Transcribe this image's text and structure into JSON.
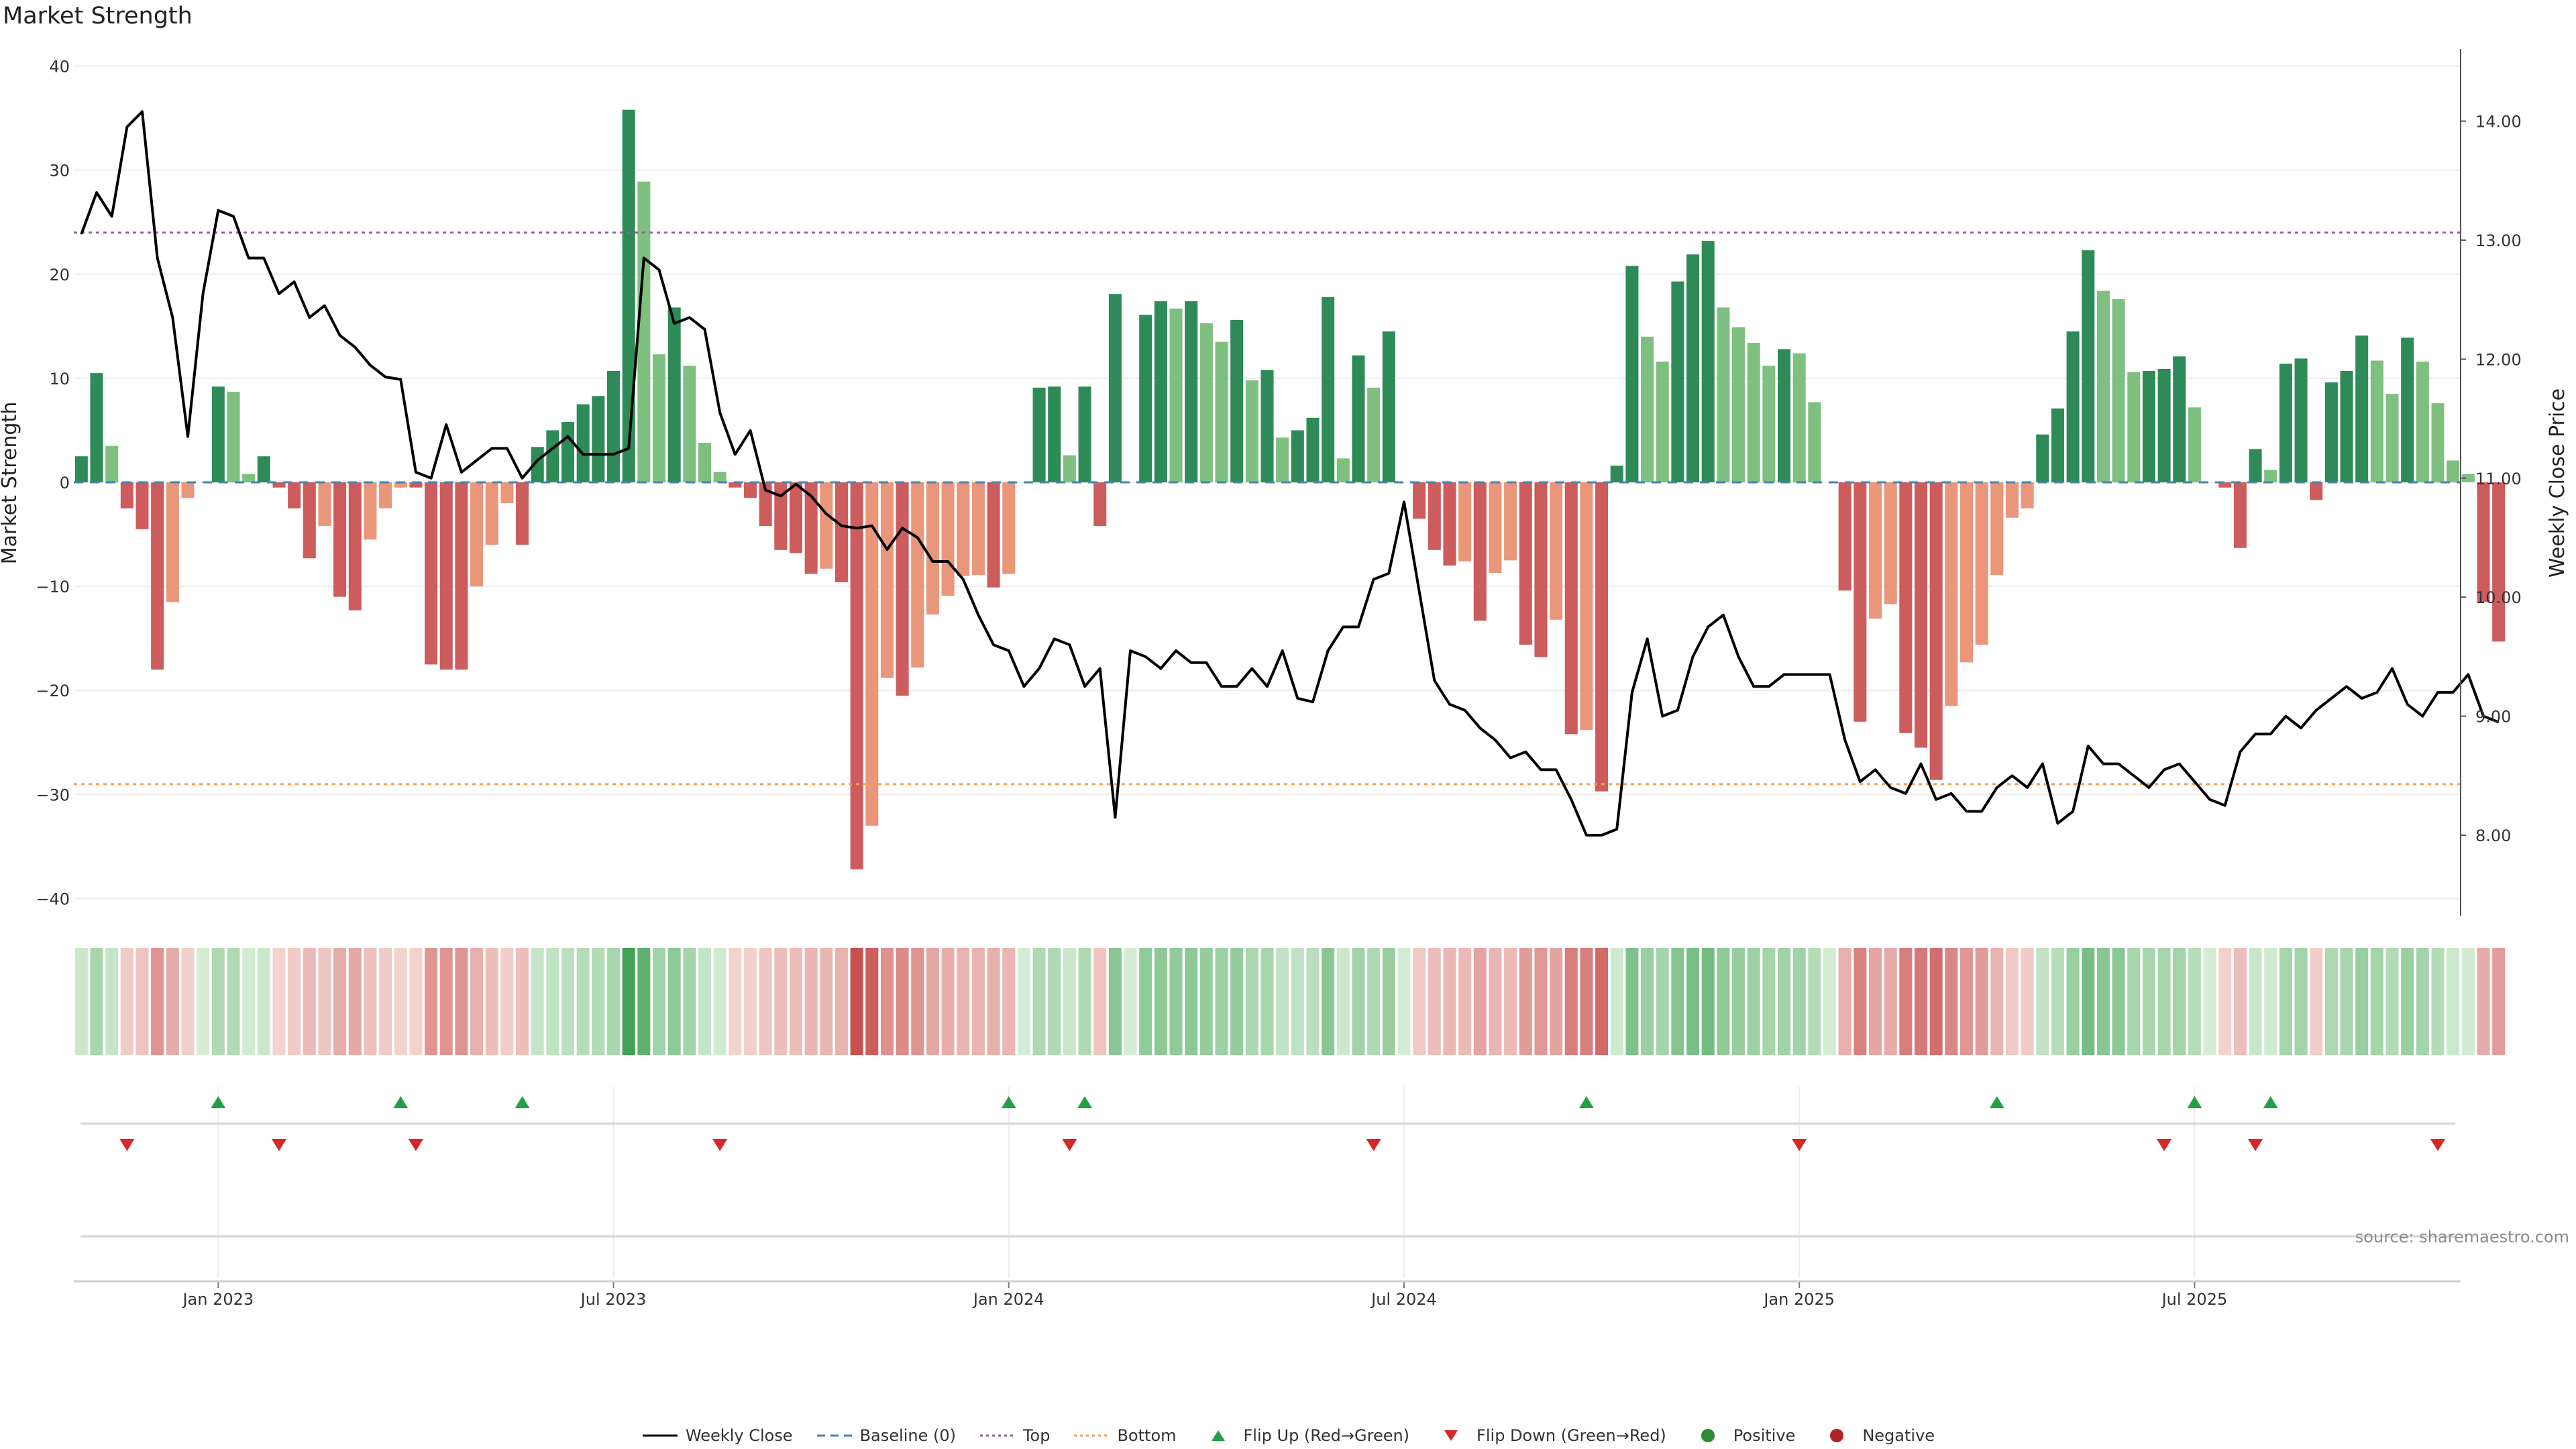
{
  "title": "Market Strength",
  "source": "source: sharemaestro.com",
  "colors": {
    "strong_green": "#2e8b57",
    "light_green": "#7fbf7f",
    "strong_red": "#cd5c5c",
    "light_red": "#e9967a",
    "price_line": "#000000",
    "baseline": "#4682b4",
    "top": "#9e5a9e",
    "bottom": "#f0a050",
    "flip_up": "#22a046",
    "flip_down": "#d62828",
    "positive": "#2e8b2e",
    "negative": "#b22222"
  },
  "legend": [
    {
      "label": "Weekly Close",
      "icon": "solid-line"
    },
    {
      "label": "Baseline (0)",
      "icon": "dashed-line"
    },
    {
      "label": "Top",
      "icon": "dotted-line"
    },
    {
      "label": "Bottom",
      "icon": "dotted-line"
    },
    {
      "label": "Flip Up (Red→Green)",
      "icon": "triangle-up"
    },
    {
      "label": "Flip Down (Green→Red)",
      "icon": "triangle-down"
    },
    {
      "label": "Positive",
      "icon": "dot"
    },
    {
      "label": "Negative",
      "icon": "dot"
    }
  ],
  "chart_data": {
    "type": "bar+line",
    "title": "Market Strength",
    "ylabel_left": "Market Strength",
    "ylabel_right": "Weekly Close Price",
    "ylim_left": [
      -41,
      41
    ],
    "yticks_left": [
      40,
      30,
      20,
      10,
      0,
      -10,
      -20,
      -30,
      -40
    ],
    "ytick_labels_left": [
      "40",
      "30",
      "20",
      "10",
      "0",
      "−10",
      "−20",
      "−30",
      "−40"
    ],
    "ylim_right": [
      7.38,
      14.55
    ],
    "yticks_right": [
      14.0,
      13.0,
      12.0,
      11.0,
      10.0,
      9.0,
      8.0
    ],
    "ytick_labels_right": [
      "14.00",
      "13.00",
      "12.00",
      "11.00",
      "10.00",
      "9.00",
      "8.00"
    ],
    "xlim_weeks": [
      -0.5,
      156.5
    ],
    "xticks": [
      {
        "label": "Jan 2023",
        "week": 9
      },
      {
        "label": "Jul 2023",
        "week": 35
      },
      {
        "label": "Jan 2024",
        "week": 61
      },
      {
        "label": "Jul 2024",
        "week": 87
      },
      {
        "label": "Jan 2025",
        "week": 113
      },
      {
        "label": "Jul 2025",
        "week": 139
      }
    ],
    "top_level": 24,
    "bottom_level": -29,
    "strength": [
      2.5,
      10.5,
      3.5,
      -2.5,
      -4.5,
      -18,
      -11.5,
      -1.5,
      0,
      9.2,
      8.7,
      0.8,
      2.5,
      -0.5,
      -2.5,
      -7.3,
      -4.2,
      -11,
      -12.3,
      -5.5,
      -2.5,
      -0.5,
      -0.5,
      -17.5,
      -18,
      -18,
      -10,
      -6,
      -2,
      -6,
      3.4,
      5,
      5.8,
      7.5,
      8.3,
      10.7,
      35.8,
      28.9,
      12.3,
      16.8,
      11.2,
      3.8,
      1,
      -0.5,
      -1.5,
      -4.2,
      -6.5,
      -6.8,
      -8.8,
      -8.3,
      -9.6,
      -37.2,
      -33,
      -18.8,
      -20.5,
      -17.8,
      -12.7,
      -10.9,
      -9,
      -8.9,
      -10.1,
      -8.8,
      0,
      9.1,
      9.2,
      2.6,
      9.2,
      -4.2,
      18.1,
      0,
      16.1,
      17.4,
      16.7,
      17.4,
      15.3,
      13.5,
      15.6,
      9.8,
      10.8,
      4.3,
      5,
      6.2,
      17.8,
      2.3,
      12.2,
      9.1,
      14.5,
      0,
      -3.5,
      -6.5,
      -8,
      -7.6,
      -13.3,
      -8.7,
      -7.5,
      -15.6,
      -16.8,
      -13.2,
      -24.2,
      -23.8,
      -29.7,
      1.6,
      20.8,
      14,
      11.6,
      19.3,
      21.9,
      23.2,
      16.8,
      14.9,
      13.4,
      11.2,
      12.8,
      12.4,
      7.7,
      0,
      -10.4,
      -23,
      -13.1,
      -11.7,
      -24.1,
      -25.5,
      -28.6,
      -21.5,
      -17.3,
      -15.6,
      -8.9,
      -3.4,
      -2.5,
      4.6,
      7.1,
      14.5,
      22.3,
      18.4,
      17.6,
      10.6,
      10.7,
      10.9,
      12.1,
      7.2,
      0,
      -0.5,
      -6.3,
      3.2,
      1.2,
      11.4,
      11.9,
      -1.7,
      9.6,
      10.7,
      14.1,
      11.7,
      8.5,
      13.9,
      11.6,
      7.6,
      2.1,
      0.8,
      -11.5,
      -15.3
    ],
    "weekly_close": [
      13.05,
      13.4,
      13.2,
      13.95,
      14.08,
      12.85,
      12.35,
      11.35,
      12.55,
      13.25,
      13.2,
      12.85,
      12.85,
      12.55,
      12.65,
      12.35,
      12.45,
      12.2,
      12.1,
      11.95,
      11.85,
      11.83,
      11.05,
      11.0,
      11.45,
      11.05,
      11.15,
      11.25,
      11.25,
      11.0,
      11.15,
      11.25,
      11.35,
      11.2,
      11.2,
      11.2,
      11.25,
      12.85,
      12.75,
      12.3,
      12.35,
      12.25,
      11.55,
      11.2,
      11.4,
      10.9,
      10.85,
      10.95,
      10.85,
      10.7,
      10.6,
      10.58,
      10.6,
      10.4,
      10.58,
      10.5,
      10.3,
      10.3,
      10.15,
      9.85,
      9.6,
      9.55,
      9.25,
      9.4,
      9.65,
      9.6,
      9.25,
      9.4,
      8.15,
      9.55,
      9.5,
      9.4,
      9.55,
      9.45,
      9.45,
      9.25,
      9.25,
      9.4,
      9.25,
      9.55,
      9.15,
      9.12,
      9.55,
      9.75,
      9.75,
      10.15,
      10.2,
      10.8,
      10.05,
      9.3,
      9.1,
      9.05,
      8.9,
      8.8,
      8.65,
      8.7,
      8.55,
      8.55,
      8.3,
      8.0,
      8.0,
      8.05,
      9.2,
      9.65,
      9.0,
      9.05,
      9.5,
      9.75,
      9.85,
      9.5,
      9.25,
      9.25,
      9.35,
      9.35,
      9.35,
      9.35,
      8.8,
      8.45,
      8.55,
      8.4,
      8.35,
      8.6,
      8.3,
      8.35,
      8.2,
      8.2,
      8.4,
      8.5,
      8.4,
      8.6,
      8.1,
      8.2,
      8.75,
      8.6,
      8.6,
      8.5,
      8.4,
      8.55,
      8.6,
      8.45,
      8.3,
      8.25,
      8.7,
      8.85,
      8.85,
      9.0,
      8.9,
      9.05,
      9.15,
      9.25,
      9.15,
      9.2,
      9.4,
      9.1,
      9.0,
      9.2,
      9.2,
      9.35,
      9.0,
      8.95
    ],
    "flip_up_weeks": [
      9,
      21,
      29,
      61,
      66,
      99,
      126,
      139,
      144
    ],
    "flip_down_weeks": [
      3,
      13,
      22,
      42,
      65,
      85,
      113,
      137,
      143,
      155
    ],
    "strip_rows": [
      "Positive",
      "Negative"
    ]
  }
}
